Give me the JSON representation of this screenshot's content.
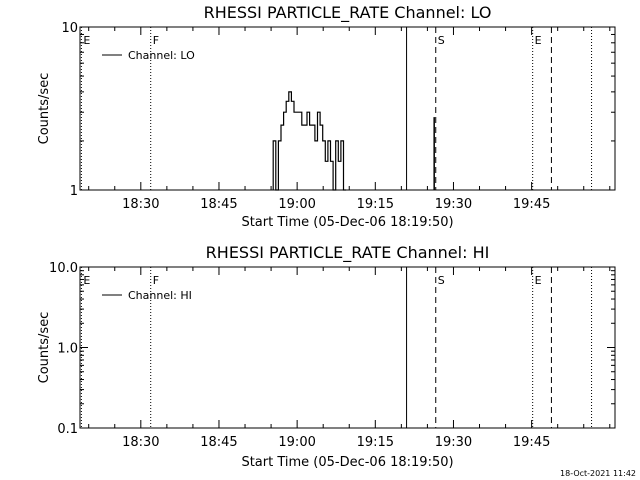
{
  "chart_data": [
    {
      "type": "line",
      "title": "RHESSI PARTICLE_RATE Channel: LO",
      "xlabel": "Start Time (05-Dec-06 18:19:50)",
      "ylabel": "Counts/sec",
      "yscale": "log",
      "ylim": [
        1,
        10
      ],
      "yticks": [
        "1",
        "10"
      ],
      "xlim_minutes": [
        18.33,
        121.0
      ],
      "xtick_labels": [
        "18:30",
        "18:45",
        "19:00",
        "19:15",
        "19:30",
        "19:45"
      ],
      "xtick_values_minutes": [
        30,
        45,
        60,
        75,
        90,
        105
      ],
      "legend": "Channel: LO",
      "series": [
        {
          "name": "Channel: LO",
          "x_minutes": [
            55.4,
            55.4,
            55.9,
            55.9,
            56.4,
            56.4,
            56.9,
            56.9,
            57.4,
            57.4,
            57.9,
            57.9,
            58.4,
            58.4,
            58.9,
            58.9,
            59.4,
            59.4,
            59.9,
            59.9,
            60.4,
            60.4,
            60.9,
            60.9,
            61.4,
            61.4,
            61.9,
            61.9,
            62.4,
            62.4,
            62.9,
            62.9,
            63.4,
            63.4,
            63.9,
            63.9,
            64.4,
            64.4,
            64.9,
            64.9,
            65.4,
            65.4,
            65.9,
            65.9,
            66.4,
            66.4,
            66.9,
            66.9,
            67.4,
            67.4,
            67.9,
            67.9,
            68.4,
            68.4,
            68.9,
            68.9,
            69.4,
            69.4
          ],
          "y_values": [
            1,
            2,
            2,
            1,
            1,
            2,
            2,
            2.5,
            2.5,
            3,
            3,
            3.5,
            3.5,
            4,
            4,
            3.5,
            3.5,
            3,
            3,
            3,
            3,
            3,
            3,
            2.5,
            2.5,
            2.5,
            2.5,
            3,
            3,
            2.5,
            2.5,
            2.5,
            2.5,
            2,
            2,
            3,
            3,
            2.5,
            2.5,
            2,
            2,
            1.5,
            1.5,
            2,
            2,
            1.5,
            1.5,
            1,
            1,
            2,
            2,
            1.5,
            1.5,
            2,
            2,
            1,
            1,
            1
          ],
          "spikes": [
            {
              "x_minutes": 86.3,
              "y": 2.8
            }
          ]
        }
      ],
      "markers": [
        {
          "label": "E",
          "style": "dotted",
          "x_minutes": 18.6
        },
        {
          "label": "F",
          "style": "dotted",
          "x_minutes": 31.9
        },
        {
          "label": "",
          "style": "solid",
          "x_minutes": 81.0
        },
        {
          "label": "S",
          "style": "dashed",
          "x_minutes": 86.6
        },
        {
          "label": "E",
          "style": "dotted",
          "x_minutes": 105.2
        },
        {
          "label": "",
          "style": "dashed",
          "x_minutes": 108.8
        },
        {
          "label": "",
          "style": "dotted",
          "x_minutes": 116.5
        }
      ]
    },
    {
      "type": "line",
      "title": "RHESSI PARTICLE_RATE Channel: HI",
      "xlabel": "Start Time (05-Dec-06 18:19:50)",
      "ylabel": "Counts/sec",
      "yscale": "log",
      "ylim": [
        0.1,
        10
      ],
      "yticks": [
        "0.1",
        "1.0",
        "10.0"
      ],
      "xlim_minutes": [
        18.33,
        121.0
      ],
      "xtick_labels": [
        "18:30",
        "18:45",
        "19:00",
        "19:15",
        "19:30",
        "19:45"
      ],
      "xtick_values_minutes": [
        30,
        45,
        60,
        75,
        90,
        105
      ],
      "legend": "Channel: HI",
      "series": [
        {
          "name": "Channel: HI",
          "x_minutes": [],
          "y_values": []
        }
      ],
      "markers": [
        {
          "label": "E",
          "style": "dotted",
          "x_minutes": 18.6
        },
        {
          "label": "F",
          "style": "dotted",
          "x_minutes": 31.9
        },
        {
          "label": "",
          "style": "solid",
          "x_minutes": 81.0
        },
        {
          "label": "S",
          "style": "dashed",
          "x_minutes": 86.6
        },
        {
          "label": "E",
          "style": "dotted",
          "x_minutes": 105.2
        },
        {
          "label": "",
          "style": "dashed",
          "x_minutes": 108.8
        },
        {
          "label": "",
          "style": "dotted",
          "x_minutes": 116.5
        }
      ]
    }
  ],
  "footer": {
    "timestamp": "18-Oct-2021 11:42"
  }
}
